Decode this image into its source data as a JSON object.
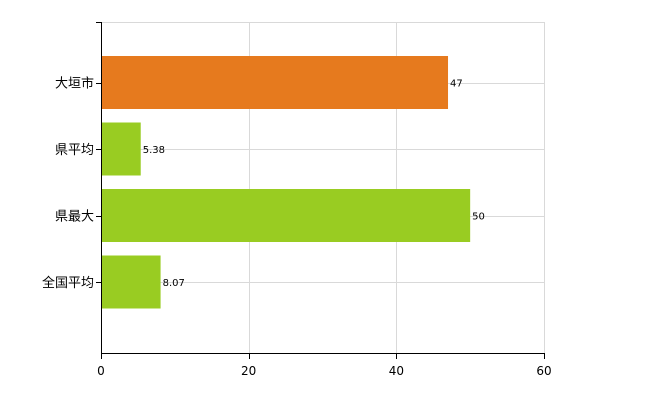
{
  "chart_data": {
    "type": "bar",
    "orientation": "horizontal",
    "categories": [
      "大垣市",
      "県平均",
      "県最大",
      "全国平均"
    ],
    "values": [
      47,
      5.38,
      50,
      8.07
    ],
    "value_labels": [
      "47",
      "5.38",
      "50",
      "8.07"
    ],
    "bar_colors": [
      "#e67a1e",
      "#99cc22",
      "#99cc22",
      "#99cc22"
    ],
    "title": "",
    "xlabel": "",
    "ylabel": "",
    "xlim": [
      0,
      60
    ],
    "x_ticks": [
      0,
      20,
      40,
      60
    ],
    "x_tick_labels": [
      "0",
      "20",
      "40",
      "60"
    ],
    "grid": true,
    "legend": "none"
  }
}
